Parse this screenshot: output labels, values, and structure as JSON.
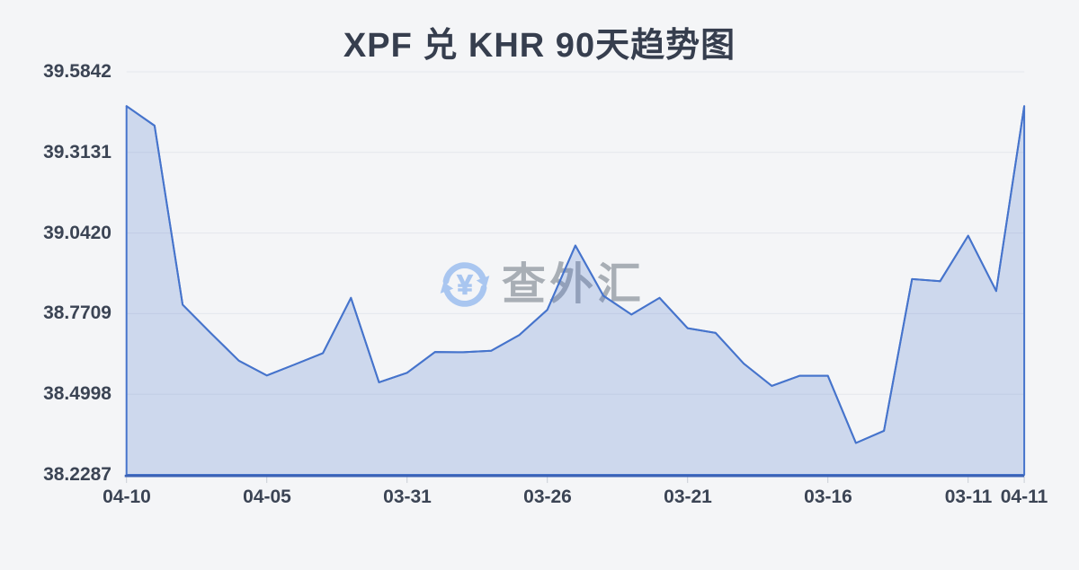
{
  "title": "XPF 兑 KHR 90天趋势图",
  "watermark": {
    "text": "查外汇",
    "icon": "currency-exchange-icon"
  },
  "colors": {
    "background": "#f4f5f7",
    "line": "#4674cc",
    "area_fill": "rgba(70,116,204,0.22)",
    "axis_line": "#3b62b5",
    "gridline": "#e4e7ec",
    "tick": "#c9ced6",
    "label_text": "#3b4454",
    "title_text": "#363e4e",
    "watermark_text": "rgba(106,114,128,0.55)",
    "watermark_icon": "#a9c6f0"
  },
  "chart_data": {
    "type": "area",
    "title": "XPF 兑 KHR 90天趋势图",
    "ylabel": "",
    "xlabel": "",
    "ylim": [
      38.2287,
      39.5842
    ],
    "grid": true,
    "y_ticks": [
      "39.5842",
      "39.3131",
      "39.0420",
      "38.7709",
      "38.4998",
      "38.2287"
    ],
    "x_ticks": [
      {
        "index": 0,
        "label": "04-10"
      },
      {
        "index": 5,
        "label": "04-05"
      },
      {
        "index": 10,
        "label": "03-31"
      },
      {
        "index": 15,
        "label": "03-26"
      },
      {
        "index": 20,
        "label": "03-21"
      },
      {
        "index": 25,
        "label": "03-16"
      },
      {
        "index": 30,
        "label": "03-11"
      },
      {
        "index": 32,
        "label": "04-11"
      }
    ],
    "values": [
      39.469,
      39.403,
      38.801,
      38.706,
      38.613,
      38.563,
      38.6,
      38.638,
      38.824,
      38.54,
      38.572,
      38.642,
      38.641,
      38.646,
      38.699,
      38.784,
      39.0,
      38.831,
      38.768,
      38.824,
      38.722,
      38.706,
      38.603,
      38.528,
      38.562,
      38.562,
      38.336,
      38.377,
      38.887,
      38.88,
      39.033,
      38.847,
      39.469
    ]
  }
}
